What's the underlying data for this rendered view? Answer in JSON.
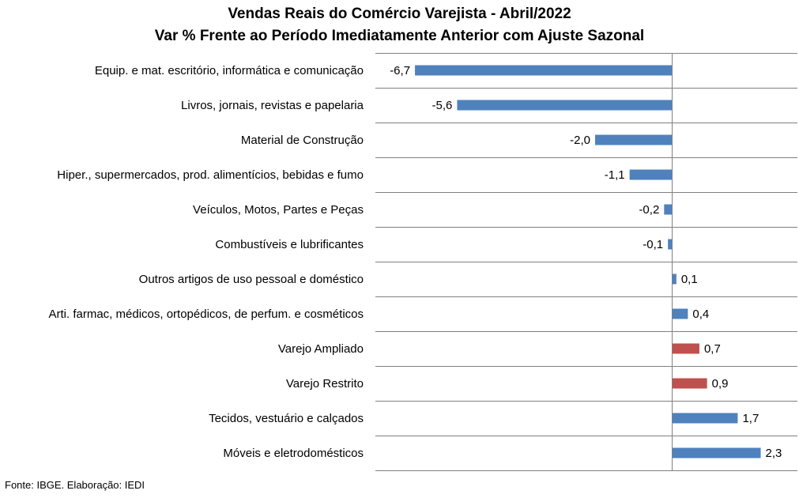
{
  "chart_data": {
    "type": "bar",
    "orientation": "horizontal",
    "title": "Vendas Reais do Comércio Varejista - Abril/2022",
    "subtitle": "Var % Frente ao Período Imediatamente Anterior com Ajuste Sazonal",
    "categories": [
      "Equip. e mat. escritório, informática e comunicação",
      "Livros, jornais, revistas e papelaria",
      "Material de Construção",
      "Hiper., supermercados, prod. alimentícios, bebidas e fumo",
      "Veículos, Motos, Partes e Peças",
      "Combustíveis e lubrificantes",
      "Outros artigos de uso pessoal e doméstico",
      "Arti. farmac, médicos, ortopédicos, de perfum. e cosméticos",
      "Varejo Ampliado",
      "Varejo Restrito",
      "Tecidos, vestuário e calçados",
      "Móveis e eletrodomésticos"
    ],
    "values": [
      -6.7,
      -5.6,
      -2.0,
      -1.1,
      -0.2,
      -0.1,
      0.1,
      0.4,
      0.7,
      0.9,
      1.7,
      2.3
    ],
    "value_labels": [
      "-6,7",
      "-5,6",
      "-2,0",
      "-1,1",
      "-0,2",
      "-0,1",
      "0,1",
      "0,4",
      "0,7",
      "0,9",
      "1,7",
      "2,3"
    ],
    "highlight": [
      false,
      false,
      false,
      false,
      false,
      false,
      false,
      false,
      true,
      true,
      false,
      false
    ],
    "colors": {
      "default": "#4F81BD",
      "highlight": "#C0504D",
      "grid": "#808080"
    },
    "xlim": [
      -7.5,
      3.0
    ],
    "grid": true,
    "legend": "none"
  },
  "footer": {
    "source": "Fonte: IBGE. Elaboração: IEDI"
  }
}
